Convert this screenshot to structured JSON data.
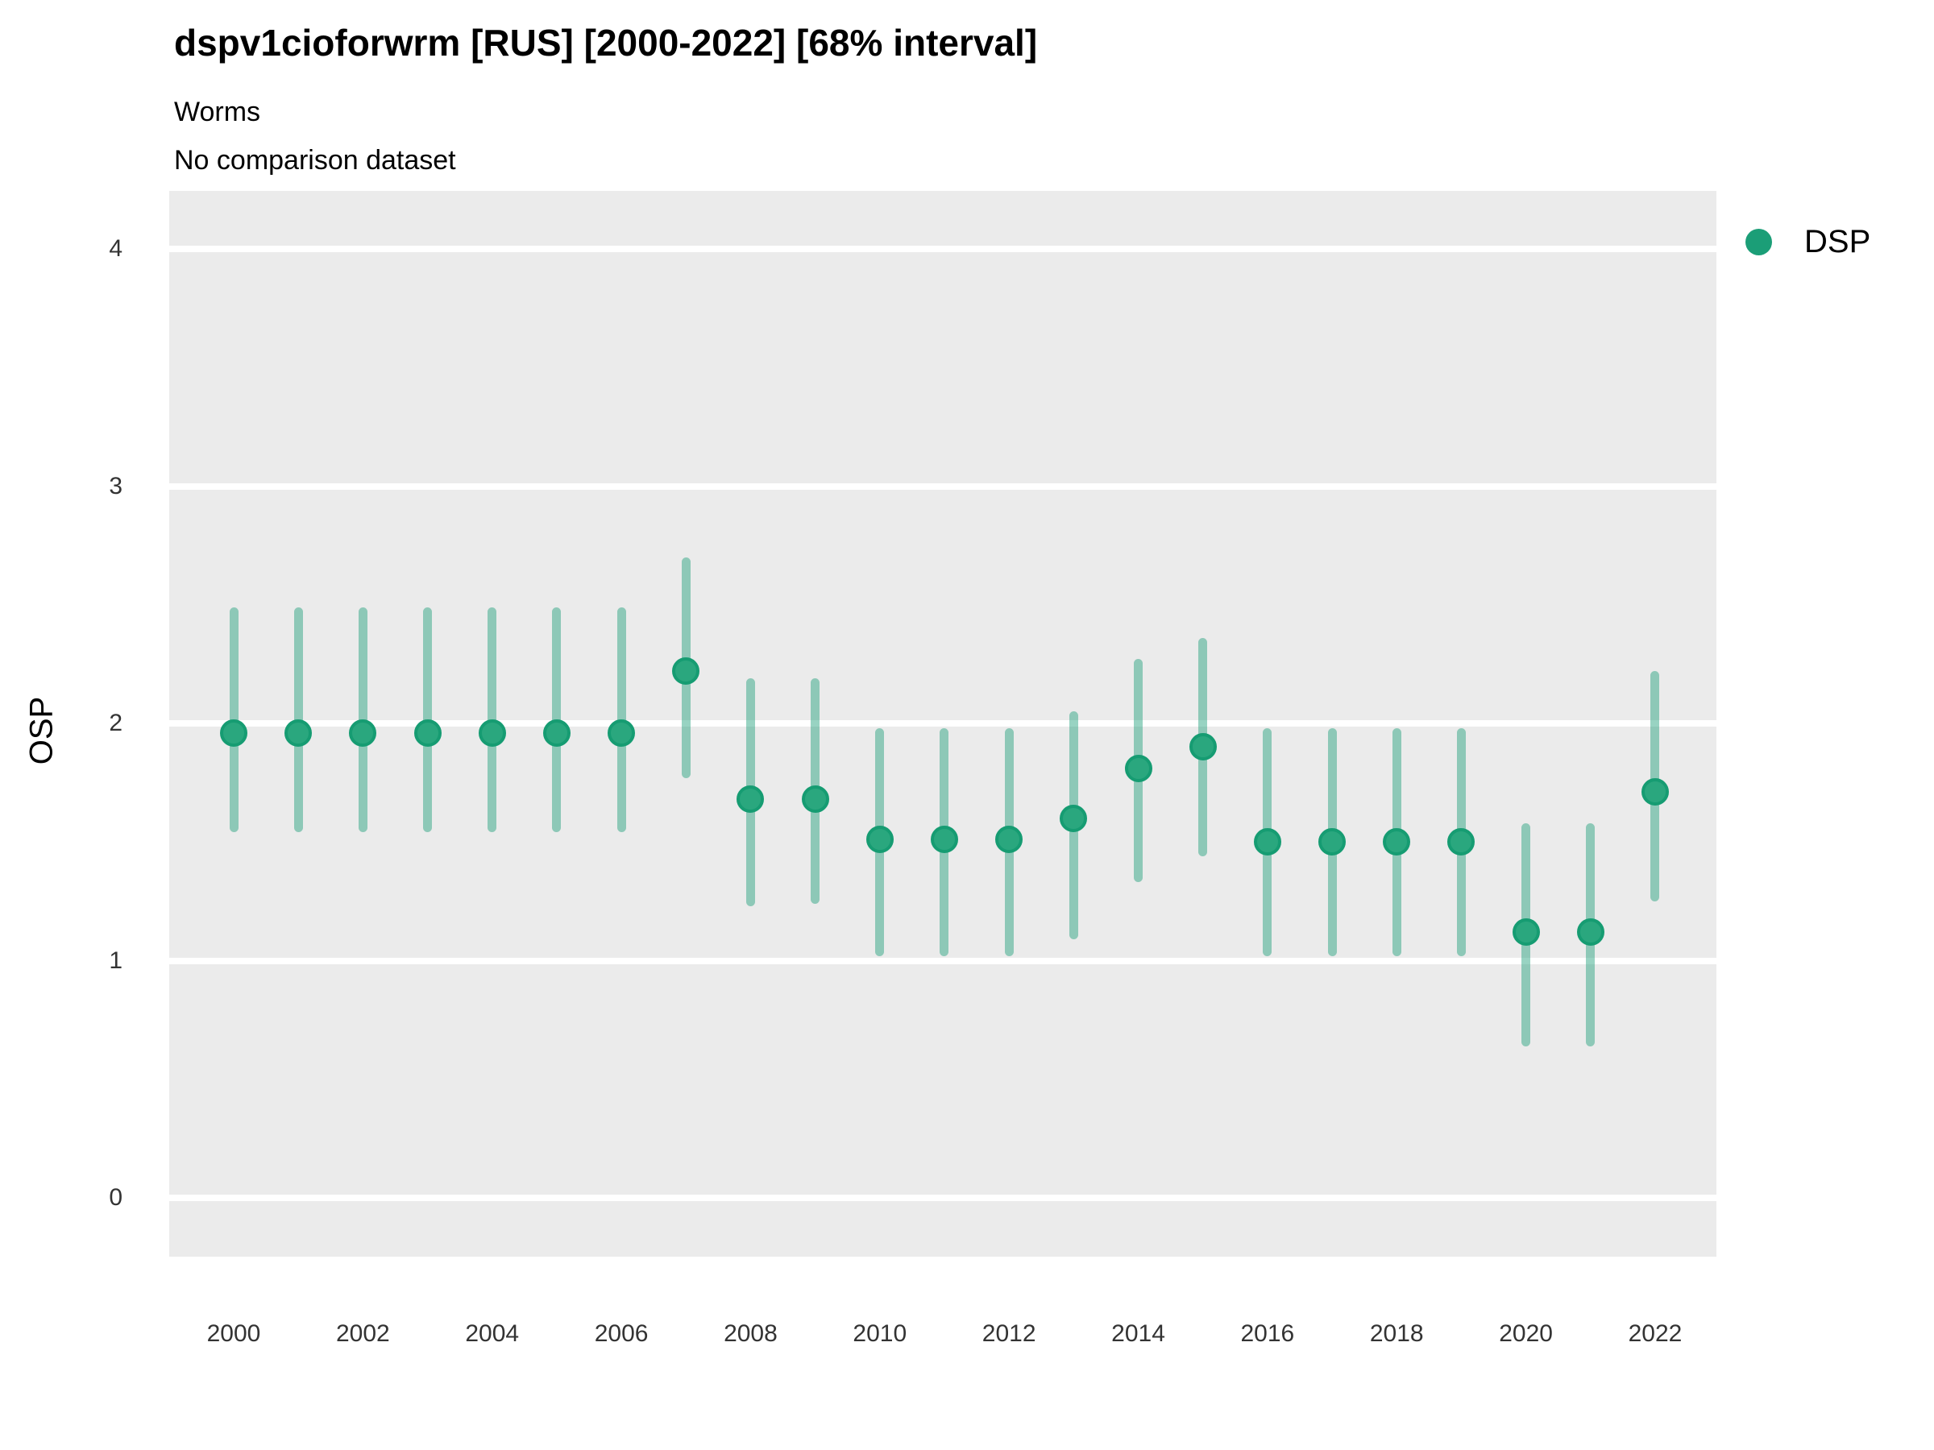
{
  "header": {
    "title": "dspv1cioforwrm [RUS] [2000-2022] [68% interval]",
    "subtitle": "Worms",
    "comparison_note": "No comparison dataset"
  },
  "legend": {
    "position": "right",
    "items": [
      {
        "label": "DSP",
        "color": "#1B9E77"
      }
    ]
  },
  "y_axis": {
    "label": "OSP"
  },
  "chart_data": {
    "type": "scatter",
    "title": "dspv1cioforwrm [RUS] [2000-2022] [68% interval]",
    "subtitle": "Worms",
    "note": "No comparison dataset",
    "xlabel": "",
    "ylabel": "OSP",
    "interval_level": "68%",
    "xlim": [
      1999,
      2023
    ],
    "ylim": [
      -0.25,
      4.25
    ],
    "grid": "major-horizontal-white-on-gray",
    "legend_position": "right",
    "panel_bg": "#EBEBEB",
    "gridline_color": "#FFFFFF",
    "point_color": "#1B9E77",
    "point_fill": "#2AA77E",
    "point_stroke": "#169C72",
    "interval_color": "rgba(27,158,119,0.45)",
    "yticks": [
      0,
      1,
      2,
      3,
      4
    ],
    "xticks": [
      2000,
      2002,
      2004,
      2006,
      2008,
      2010,
      2012,
      2014,
      2016,
      2018,
      2020,
      2022
    ],
    "series": [
      {
        "name": "DSP",
        "x": [
          2000,
          2001,
          2002,
          2003,
          2004,
          2005,
          2006,
          2007,
          2008,
          2009,
          2010,
          2011,
          2012,
          2013,
          2014,
          2015,
          2016,
          2017,
          2018,
          2019,
          2020,
          2021,
          2022
        ],
        "y": [
          1.96,
          1.96,
          1.96,
          1.96,
          1.96,
          1.96,
          1.96,
          2.22,
          1.68,
          1.68,
          1.51,
          1.51,
          1.51,
          1.6,
          1.81,
          1.9,
          1.5,
          1.5,
          1.5,
          1.5,
          1.12,
          1.12,
          1.71
        ],
        "ci_low": [
          1.54,
          1.54,
          1.54,
          1.54,
          1.54,
          1.54,
          1.54,
          1.77,
          1.23,
          1.24,
          1.02,
          1.02,
          1.02,
          1.09,
          1.33,
          1.44,
          1.02,
          1.02,
          1.02,
          1.02,
          0.64,
          0.64,
          1.25
        ],
        "ci_high": [
          2.49,
          2.49,
          2.49,
          2.49,
          2.49,
          2.49,
          2.49,
          2.7,
          2.19,
          2.19,
          1.98,
          1.98,
          1.98,
          2.05,
          2.27,
          2.36,
          1.98,
          1.98,
          1.98,
          1.98,
          1.58,
          1.58,
          2.22
        ]
      }
    ]
  }
}
